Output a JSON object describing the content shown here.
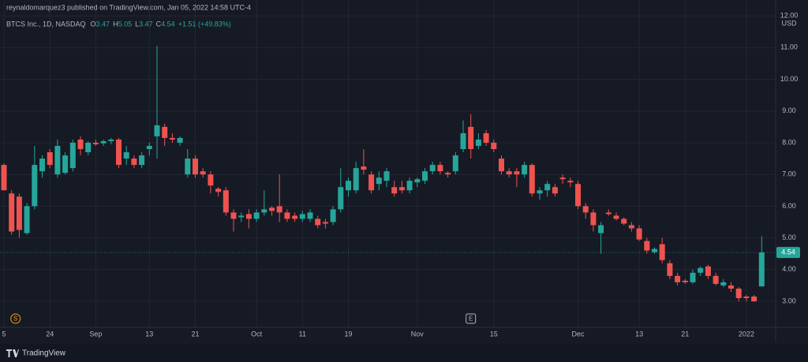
{
  "header": "reynaldomarquez3 published on TradingView.com, Jan 05, 2022 14:58 UTC-4",
  "footer": "TradingView",
  "chart_data": {
    "type": "candlestick",
    "symbol": "BTCS Inc., 1D, NASDAQ",
    "legend": [
      {
        "key": "O",
        "value": "3.47"
      },
      {
        "key": "H",
        "value": "5.05"
      },
      {
        "key": "L",
        "value": "3.47"
      },
      {
        "key": "C",
        "value": "4.54"
      },
      {
        "key": "",
        "value": "+1.51 (+49.83%)"
      }
    ],
    "currency": "USD",
    "up_color": "#26a69a",
    "down_color": "#ef5350",
    "grid": true,
    "last_price": {
      "value": 4.54,
      "label": "4.54"
    },
    "event_markers": [
      {
        "label": "S",
        "color": "#f0a30a",
        "index": 1
      },
      {
        "label": "E",
        "color": "#b2b5be",
        "index": 61
      }
    ],
    "categories": [
      "5",
      null,
      null,
      null,
      null,
      null,
      "24",
      null,
      null,
      null,
      null,
      null,
      "Sep",
      null,
      null,
      null,
      null,
      null,
      null,
      "13",
      null,
      null,
      null,
      null,
      null,
      "21",
      null,
      null,
      null,
      null,
      null,
      null,
      null,
      "Oct",
      null,
      null,
      null,
      null,
      null,
      "11",
      null,
      null,
      null,
      null,
      null,
      "19",
      null,
      null,
      null,
      null,
      null,
      null,
      null,
      null,
      "Nov",
      null,
      null,
      null,
      null,
      null,
      null,
      null,
      null,
      null,
      "15",
      null,
      null,
      null,
      null,
      null,
      null,
      null,
      null,
      null,
      null,
      "Dec",
      null,
      null,
      null,
      null,
      null,
      null,
      null,
      "13",
      null,
      null,
      null,
      null,
      null,
      "21",
      null,
      null,
      null,
      null,
      null,
      null,
      null,
      "2022",
      null,
      null
    ],
    "open": [
      7.3,
      6.4,
      6.3,
      5.15,
      6.0,
      7.1,
      7.7,
      7.0,
      7.05,
      7.2,
      8.1,
      7.7,
      8.0,
      7.98,
      8.05,
      8.1,
      7.5,
      7.5,
      7.3,
      7.8,
      8.2,
      8.5,
      8.15,
      8.0,
      7.0,
      7.5,
      7.1,
      7.0,
      6.55,
      6.5,
      5.8,
      5.65,
      5.75,
      5.6,
      5.8,
      5.95,
      6.0,
      5.8,
      5.7,
      5.6,
      5.6,
      5.6,
      5.5,
      5.5,
      5.9,
      6.5,
      6.5,
      7.25,
      7.0,
      6.7,
      6.8,
      6.6,
      6.6,
      6.5,
      6.75,
      6.8,
      7.1,
      7.3,
      7.05,
      7.1,
      7.8,
      8.5,
      7.9,
      8.3,
      8.0,
      7.5,
      7.1,
      7.1,
      7.0,
      7.3,
      6.4,
      6.5,
      6.6,
      6.9,
      6.8,
      6.7,
      6.0,
      5.8,
      5.15,
      5.8,
      5.7,
      5.6,
      5.4,
      5.3,
      4.9,
      4.55,
      4.8,
      4.2,
      3.8,
      3.65,
      3.6,
      3.9,
      4.1,
      3.8,
      3.5,
      3.5,
      3.4,
      3.15,
      3.15,
      3.47
    ],
    "high": [
      7.35,
      6.5,
      6.4,
      6.1,
      7.9,
      7.6,
      7.8,
      8.1,
      7.7,
      8.1,
      8.2,
      8.05,
      8.1,
      8.1,
      8.15,
      8.15,
      7.9,
      7.6,
      7.7,
      8.0,
      11.05,
      8.6,
      8.3,
      8.2,
      7.8,
      7.6,
      7.2,
      7.1,
      6.6,
      6.6,
      5.9,
      5.8,
      5.9,
      5.9,
      6.5,
      6.0,
      7.0,
      5.9,
      5.8,
      5.85,
      5.9,
      5.7,
      5.6,
      6.0,
      7.2,
      6.9,
      7.4,
      7.8,
      7.1,
      7.1,
      7.2,
      6.8,
      6.8,
      6.9,
      6.9,
      7.2,
      7.4,
      7.4,
      7.1,
      7.7,
      8.7,
      8.9,
      8.3,
      8.4,
      8.1,
      7.6,
      7.2,
      7.2,
      7.4,
      7.35,
      6.6,
      6.8,
      6.7,
      7.0,
      6.9,
      6.8,
      6.1,
      5.9,
      5.5,
      5.9,
      5.8,
      5.65,
      5.5,
      5.4,
      5.0,
      4.7,
      5.0,
      4.3,
      3.9,
      3.7,
      4.0,
      4.1,
      4.15,
      3.9,
      3.7,
      3.6,
      3.45,
      3.2,
      3.2,
      5.05
    ],
    "low": [
      6.5,
      5.1,
      5.0,
      5.1,
      5.9,
      6.9,
      7.2,
      6.9,
      7.0,
      7.1,
      7.6,
      7.6,
      7.9,
      7.9,
      7.95,
      7.2,
      7.3,
      7.2,
      7.2,
      7.6,
      7.5,
      7.9,
      8.0,
      7.9,
      6.9,
      6.9,
      6.9,
      6.4,
      6.3,
      5.7,
      5.2,
      5.5,
      5.3,
      5.5,
      5.7,
      5.7,
      5.5,
      5.5,
      5.5,
      5.5,
      5.5,
      5.3,
      5.3,
      5.4,
      5.8,
      6.3,
      6.4,
      7.0,
      6.4,
      6.5,
      6.6,
      6.3,
      6.4,
      6.4,
      6.6,
      6.7,
      7.0,
      7.0,
      6.9,
      7.0,
      7.7,
      7.5,
      7.8,
      7.9,
      7.7,
      7.0,
      6.9,
      6.6,
      6.9,
      6.3,
      6.2,
      6.3,
      6.3,
      6.7,
      6.6,
      5.9,
      5.6,
      5.2,
      4.5,
      5.7,
      5.55,
      5.4,
      5.2,
      4.9,
      4.5,
      4.5,
      4.2,
      3.7,
      3.5,
      3.55,
      3.55,
      3.8,
      3.7,
      3.5,
      3.45,
      3.3,
      3.0,
      3.0,
      2.98,
      3.47
    ],
    "close": [
      6.5,
      5.2,
      5.25,
      6.0,
      7.3,
      7.5,
      7.3,
      7.9,
      7.6,
      8.0,
      7.8,
      8.0,
      7.95,
      8.05,
      8.1,
      7.3,
      7.7,
      7.3,
      7.6,
      7.9,
      8.55,
      8.15,
      8.1,
      8.15,
      7.5,
      7.0,
      7.0,
      6.65,
      6.45,
      5.8,
      5.6,
      5.7,
      5.6,
      5.8,
      5.9,
      5.85,
      5.8,
      5.6,
      5.6,
      5.75,
      5.8,
      5.4,
      5.45,
      5.9,
      6.6,
      6.8,
      7.2,
      7.15,
      6.5,
      6.9,
      7.1,
      6.4,
      6.5,
      6.8,
      6.85,
      7.1,
      7.3,
      7.1,
      7.0,
      7.6,
      8.3,
      7.8,
      8.1,
      8.0,
      7.8,
      7.1,
      7.0,
      7.0,
      7.3,
      6.4,
      6.5,
      6.7,
      6.4,
      6.85,
      6.75,
      6.0,
      5.8,
      5.4,
      5.4,
      5.75,
      5.6,
      5.45,
      5.3,
      4.95,
      4.6,
      4.65,
      4.3,
      3.8,
      3.6,
      3.6,
      3.9,
      4.05,
      3.8,
      3.55,
      3.6,
      3.4,
      3.1,
      3.1,
      3.0,
      4.54
    ],
    "ylim": [
      2.18,
      12.5
    ],
    "yticks": [
      {
        "value": 3,
        "label": "3.00"
      },
      {
        "value": 4,
        "label": "4.00"
      },
      {
        "value": 5,
        "label": "5.00"
      },
      {
        "value": 6,
        "label": "6.00"
      },
      {
        "value": 7,
        "label": "7.00"
      },
      {
        "value": 8,
        "label": "8.00"
      },
      {
        "value": 9,
        "label": "9.00"
      },
      {
        "value": 10,
        "label": "10.00"
      },
      {
        "value": 11,
        "label": "11.00"
      },
      {
        "value": 12,
        "label": "12.00"
      }
    ]
  }
}
